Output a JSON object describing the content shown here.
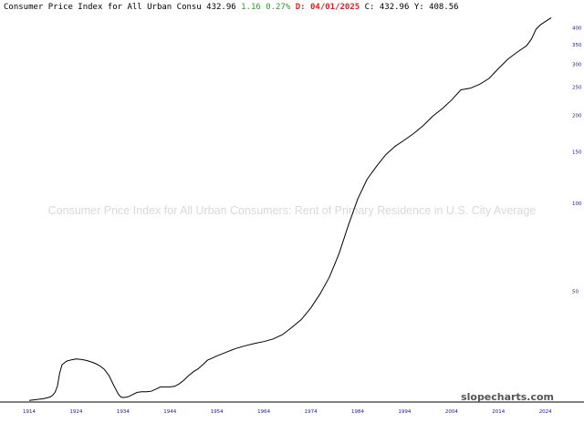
{
  "header": {
    "title": "Consumer Price Index for All Urban Consu",
    "close": "432.96",
    "change": "1.16",
    "change_pct": "0.27%",
    "date_label": "D:",
    "date": "04/01/2025",
    "c_label": "C:",
    "c_value": "432.96",
    "y_label": "Y:",
    "y_value": "408.56"
  },
  "watermark": "Consumer Price Index for All Urban Consumers: Rent of Primary Residence in U.S. City Average",
  "brand": "slopecharts.com",
  "colors": {
    "line": "#000000",
    "change": "#2e9e2e",
    "date": "#e02020",
    "axis_text": "#1a1aa0",
    "watermark": "#d9d9d9"
  },
  "chart_data": {
    "type": "line",
    "title": "Consumer Price Index for All Urban Consumers: Rent of Primary Residence in U.S. City Average",
    "y_scale": "log",
    "x_ticks": [
      "1914",
      "1924",
      "1934",
      "1944",
      "1954",
      "1964",
      "1974",
      "1984",
      "1994",
      "2004",
      "2014",
      "2024"
    ],
    "y_ticks": [
      50,
      100,
      150,
      200,
      250,
      300,
      350,
      400
    ],
    "ylim": [
      21,
      450
    ],
    "xlim": [
      1914,
      2026
    ],
    "grid": false,
    "series": [
      {
        "x": [
          1914,
          1916,
          1917,
          1918,
          1918.5,
          1919,
          1919.5,
          1920,
          1920.5,
          1921,
          1922,
          1923,
          1924,
          1925,
          1926,
          1927,
          1928,
          1929,
          1930,
          1931,
          1932,
          1933,
          1933.5,
          1934,
          1935,
          1936,
          1937,
          1938,
          1939,
          1940,
          1941,
          1942,
          1943,
          1944,
          1945,
          1946,
          1947,
          1948,
          1949,
          1950,
          1951,
          1952,
          1953,
          1954,
          1956,
          1958,
          1960,
          1962,
          1964,
          1966,
          1968,
          1970,
          1972,
          1974,
          1976,
          1978,
          1980,
          1982,
          1984,
          1986,
          1988,
          1990,
          1992,
          1994,
          1996,
          1998,
          2000,
          2002,
          2004,
          2006,
          2008,
          2010,
          2012,
          2014,
          2016,
          2018,
          2020,
          2021,
          2022,
          2023,
          2024,
          2025.25
        ],
        "y": [
          21.1,
          21.3,
          21.4,
          21.6,
          21.7,
          22.0,
          22.5,
          23.6,
          26.2,
          28.0,
          28.8,
          29.1,
          29.3,
          29.2,
          29.0,
          28.7,
          28.3,
          27.8,
          27.0,
          25.7,
          23.8,
          22.2,
          21.7,
          21.6,
          21.7,
          22.1,
          22.5,
          22.6,
          22.6,
          22.7,
          23.1,
          23.5,
          23.5,
          23.5,
          23.6,
          24.1,
          24.8,
          25.7,
          26.5,
          27.1,
          28.0,
          29.0,
          29.5,
          30.0,
          30.9,
          31.8,
          32.5,
          33.1,
          33.6,
          34.3,
          35.5,
          37.6,
          40.0,
          43.8,
          49.0,
          56.0,
          67.0,
          84.0,
          103.5,
          121.0,
          134.0,
          147.0,
          157.0,
          165.0,
          174.0,
          185.0,
          199.0,
          211.0,
          226.0,
          245.0,
          248.0,
          256.0,
          268.0,
          290.0,
          312.0,
          330.0,
          347.0,
          365.0,
          395.0,
          410.0,
          420.0,
          432.96
        ]
      }
    ]
  }
}
